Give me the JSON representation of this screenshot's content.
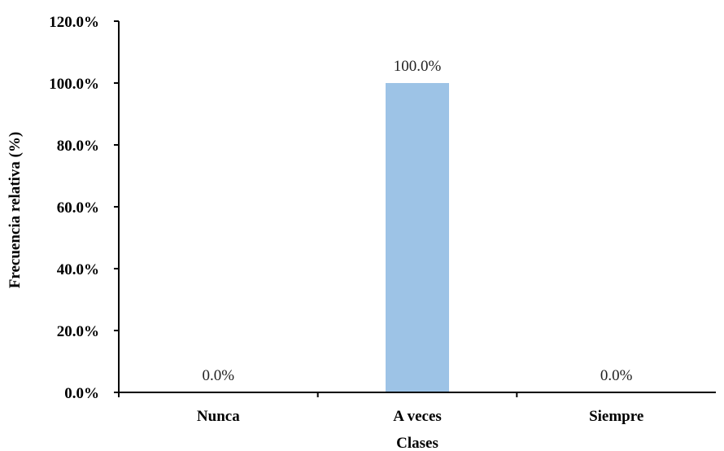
{
  "chart_data": {
    "type": "bar",
    "categories": [
      "Nunca",
      "A veces",
      "Siempre"
    ],
    "values": [
      0.0,
      100.0,
      0.0
    ],
    "data_labels": [
      "0.0%",
      "100.0%",
      "0.0%"
    ],
    "xlabel": "Clases",
    "ylabel": "Frecuencia  relativa  (%)",
    "ylim": [
      0,
      120
    ],
    "yticks": [
      0,
      20,
      40,
      60,
      80,
      100,
      120
    ],
    "ytick_labels": [
      "0.0%",
      "20.0%",
      "40.0%",
      "60.0%",
      "80.0%",
      "100.0%",
      "120.0%"
    ],
    "grid": false,
    "legend": "none",
    "bar_color": "#9DC3E6",
    "axis_color": "#000000"
  }
}
